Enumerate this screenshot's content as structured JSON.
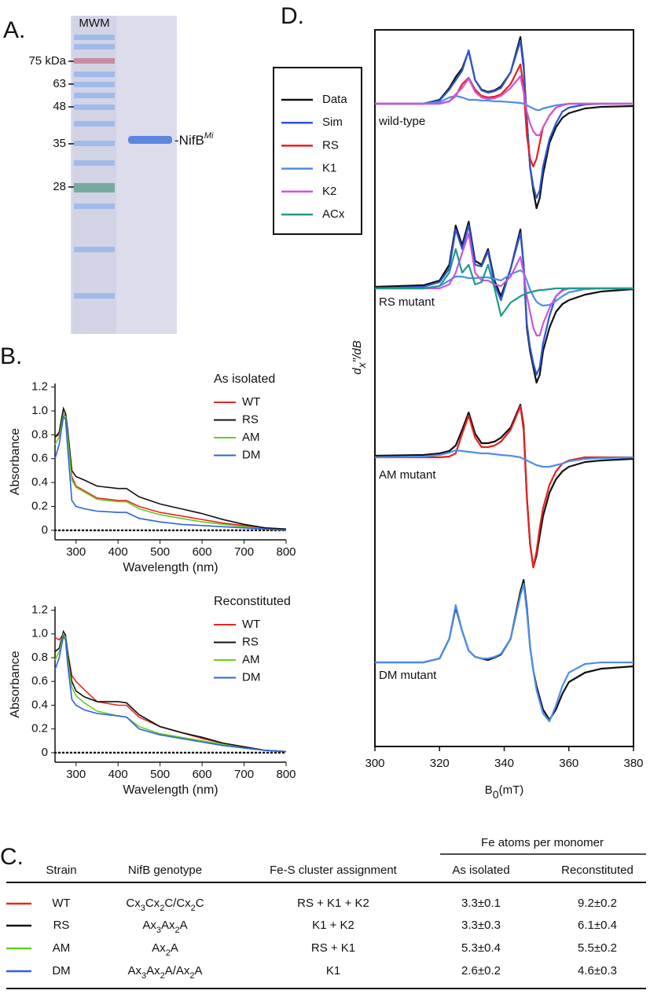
{
  "panel_labels": [
    "A.",
    "B.",
    "C.",
    "D."
  ],
  "gel": {
    "lane_label": "MWM",
    "markers": [
      "75 kDa",
      "63",
      "48",
      "35",
      "28"
    ],
    "band_label": {
      "text": "-NifB",
      "sup": "Mi"
    }
  },
  "chart_data": [
    {
      "type": "line",
      "legend_title": "As isolated",
      "xlabel": "Wavelength (nm)",
      "ylabel": "Absorbance",
      "x": [
        250,
        260,
        270,
        275,
        280,
        290,
        300,
        320,
        350,
        400,
        420,
        450,
        500,
        550,
        600,
        650,
        700,
        750,
        800
      ],
      "series": [
        {
          "name": "WT",
          "color": "#e8281e",
          "values": [
            0.78,
            0.8,
            0.98,
            0.95,
            0.8,
            0.45,
            0.37,
            0.33,
            0.27,
            0.25,
            0.25,
            0.2,
            0.15,
            0.12,
            0.09,
            0.06,
            0.04,
            0.02,
            0.01
          ]
        },
        {
          "name": "RS",
          "color": "#111111",
          "values": [
            0.78,
            0.82,
            1.02,
            0.98,
            0.85,
            0.5,
            0.45,
            0.42,
            0.37,
            0.35,
            0.35,
            0.28,
            0.22,
            0.18,
            0.14,
            0.09,
            0.05,
            0.02,
            0.01
          ]
        },
        {
          "name": "AM",
          "color": "#66cc22",
          "values": [
            0.72,
            0.78,
            0.97,
            0.95,
            0.8,
            0.42,
            0.36,
            0.32,
            0.26,
            0.24,
            0.24,
            0.18,
            0.13,
            0.1,
            0.07,
            0.05,
            0.03,
            0.01,
            0
          ]
        },
        {
          "name": "DM",
          "color": "#3060e0",
          "values": [
            0.6,
            0.72,
            0.95,
            0.93,
            0.7,
            0.25,
            0.2,
            0.18,
            0.16,
            0.15,
            0.15,
            0.1,
            0.07,
            0.05,
            0.04,
            0.03,
            0.02,
            0.01,
            0
          ]
        }
      ],
      "xlim": [
        250,
        800
      ],
      "ylim": [
        -0.08,
        1.23
      ],
      "xticks": [
        300,
        400,
        500,
        600,
        700,
        800
      ],
      "yticks": [
        0,
        0.2,
        0.4,
        0.6,
        0.8,
        {
          "value": 1,
          "label": "1.0"
        },
        1.2
      ]
    },
    {
      "type": "line",
      "legend_title": "Reconstituted",
      "xlabel": "Wavelength (nm)",
      "ylabel": "Absorbance",
      "x": [
        250,
        260,
        270,
        275,
        280,
        290,
        300,
        320,
        350,
        400,
        420,
        450,
        500,
        550,
        600,
        650,
        700,
        750,
        800
      ],
      "series": [
        {
          "name": "WT",
          "color": "#e8281e",
          "values": [
            0.97,
            0.95,
            1.0,
            0.97,
            0.85,
            0.65,
            0.6,
            0.53,
            0.43,
            0.4,
            0.4,
            0.3,
            0.22,
            0.17,
            0.12,
            0.08,
            0.05,
            0.02,
            0.01
          ]
        },
        {
          "name": "RS",
          "color": "#111111",
          "values": [
            0.85,
            0.88,
            1.02,
            0.99,
            0.85,
            0.6,
            0.52,
            0.47,
            0.43,
            0.43,
            0.42,
            0.32,
            0.22,
            0.17,
            0.13,
            0.08,
            0.05,
            0.02,
            0.01
          ]
        },
        {
          "name": "AM",
          "color": "#66cc22",
          "values": [
            0.78,
            0.85,
            1.0,
            0.97,
            0.8,
            0.55,
            0.48,
            0.42,
            0.35,
            0.31,
            0.3,
            0.22,
            0.16,
            0.13,
            0.1,
            0.07,
            0.04,
            0.02,
            0.01
          ]
        },
        {
          "name": "DM",
          "color": "#3060e0",
          "values": [
            0.7,
            0.8,
            0.98,
            0.95,
            0.75,
            0.45,
            0.4,
            0.36,
            0.33,
            0.31,
            0.3,
            0.2,
            0.15,
            0.12,
            0.09,
            0.06,
            0.04,
            0.02,
            0.01
          ]
        }
      ],
      "xlim": [
        250,
        800
      ],
      "ylim": [
        -0.08,
        1.23
      ],
      "xticks": [
        300,
        400,
        500,
        600,
        700,
        800
      ],
      "yticks": [
        0,
        0.2,
        0.4,
        0.6,
        0.8,
        {
          "value": 1,
          "label": "1.0"
        },
        1.2
      ]
    },
    {
      "type": "spectra",
      "ylabel": {
        "base": "d",
        "sub": "x",
        "rest": "′′/dB"
      },
      "xlabel": {
        "base": "B",
        "sub": "0",
        "rest": "(mT)"
      },
      "xlim": [
        300,
        380
      ],
      "xticks": [
        300,
        320,
        340,
        360,
        380
      ],
      "legend": [
        {
          "name": "Data",
          "color": "#111111"
        },
        {
          "name": "Sim",
          "color": "#2f55d4"
        },
        {
          "name": "RS",
          "color": "#e62020"
        },
        {
          "name": "K1",
          "color": "#4d8fe8"
        },
        {
          "name": "K2",
          "color": "#cc55dd"
        },
        {
          "name": "ACx",
          "color": "#22998a"
        }
      ],
      "x": [
        300,
        315,
        320,
        323,
        325,
        327,
        329,
        331,
        333,
        335,
        337,
        339,
        342,
        345,
        346,
        347,
        348,
        349,
        350,
        351,
        352,
        354,
        356,
        358,
        360,
        365,
        370,
        380
      ],
      "panels": [
        {
          "label": "wild-type",
          "series": [
            {
              "color": "#111111",
              "values": [
                0,
                0,
                0.5,
                2,
                3.4,
                4.5,
                6.7,
                3,
                1.8,
                1.5,
                1.7,
                2.2,
                4,
                8.5,
                5,
                -2,
                -8,
                -11,
                -13.3,
                -12,
                -9,
                -5,
                -3,
                -1.8,
                -1.2,
                -0.6,
                -0.4,
                -0.3
              ]
            },
            {
              "color": "#2f55d4",
              "values": [
                0,
                0,
                0.4,
                1.8,
                3,
                4.2,
                6.8,
                3,
                1.7,
                1.4,
                1.6,
                2,
                4,
                8,
                4.5,
                -2,
                -8,
                -10.5,
                -12,
                -11,
                -8,
                -4.5,
                -2.5,
                -1,
                -0.5,
                -0.1,
                0,
                0
              ]
            },
            {
              "color": "#e62020",
              "values": [
                0,
                0,
                0,
                0.3,
                1,
                2.5,
                3.3,
                1.8,
                1,
                0.8,
                0.9,
                1.2,
                2.5,
                5,
                2,
                -4,
                -7,
                -8,
                -7,
                -5,
                -3,
                -1.5,
                -0.5,
                -0.2,
                0,
                0,
                0,
                0
              ]
            },
            {
              "color": "#4d8fe8",
              "values": [
                0,
                0,
                0.2,
                0.8,
                1,
                0.8,
                0.5,
                0.5,
                0.4,
                0.4,
                0.3,
                0.3,
                0.2,
                0.1,
                0,
                -0.2,
                -0.4,
                -0.6,
                -0.8,
                -0.8,
                -0.6,
                -0.4,
                -0.2,
                -0.1,
                0,
                0,
                0,
                0
              ]
            },
            {
              "color": "#cc55dd",
              "values": [
                0,
                0,
                0,
                0.3,
                1.2,
                2,
                3.2,
                1.5,
                0.8,
                0.6,
                0.7,
                1,
                2,
                3.5,
                1.5,
                -1,
                -2.5,
                -3.5,
                -4,
                -4,
                -3,
                -1.5,
                -0.5,
                -0.2,
                0,
                0,
                0,
                0
              ]
            }
          ]
        },
        {
          "label": "RS mutant",
          "series": [
            {
              "color": "#111111",
              "values": [
                0.2,
                0.4,
                1,
                3,
                8,
                5.5,
                8.5,
                3.5,
                3,
                5,
                1,
                -1,
                2.5,
                7.5,
                3,
                -5,
                -8,
                -10,
                -12,
                -11,
                -8,
                -5,
                -3,
                -2,
                -1.5,
                -0.8,
                -0.4,
                -0.1
              ]
            },
            {
              "color": "#2f55d4",
              "values": [
                0,
                0.2,
                0.8,
                2.5,
                7.5,
                5,
                8,
                3,
                2.8,
                4.7,
                0.5,
                -1.5,
                2.5,
                7,
                3,
                -4.5,
                -7.5,
                -9.5,
                -11,
                -10,
                -7,
                -3.5,
                -1,
                -0.2,
                0,
                0,
                0,
                0
              ]
            },
            {
              "color": "#4d8fe8",
              "values": [
                0,
                0,
                0.3,
                1,
                1.5,
                1.5,
                1.3,
                1.3,
                1.4,
                1.4,
                1.2,
                1,
                1.8,
                2.3,
                2,
                1,
                -0.2,
                -1,
                -1.7,
                -2,
                -2.2,
                -2.1,
                -1.6,
                -1,
                -0.5,
                -0.1,
                0,
                0
              ]
            },
            {
              "color": "#cc55dd",
              "values": [
                0,
                0,
                0,
                0.5,
                2,
                4.5,
                7,
                2,
                1,
                1,
                0.5,
                0.3,
                1.5,
                4,
                2,
                -1,
                -3,
                -5,
                -6,
                -6,
                -4.5,
                -2.5,
                -1,
                -0.3,
                0,
                0,
                0,
                0
              ]
            },
            {
              "color": "#22998a",
              "values": [
                0,
                0,
                0.3,
                2,
                5,
                2,
                3,
                0.5,
                0.8,
                3,
                0,
                -3.5,
                -1.8,
                -1,
                -0.8,
                -0.6,
                -0.5,
                -0.4,
                -0.3,
                -0.2,
                -0.2,
                -0.1,
                0,
                0,
                0,
                0,
                0,
                0
              ]
            }
          ]
        },
        {
          "label": "AM mutant",
          "series": [
            {
              "color": "#111111",
              "values": [
                0.2,
                0.3,
                0.5,
                0.8,
                1.5,
                3.5,
                5.7,
                3,
                1.8,
                1.8,
                2,
                2.5,
                3.8,
                6.7,
                4,
                -5,
                -11,
                -14,
                -12.5,
                -10,
                -7.5,
                -4.5,
                -2.8,
                -1.8,
                -1.2,
                -0.6,
                -0.4,
                -0.2
              ]
            },
            {
              "color": "#e62020",
              "values": [
                0,
                0,
                0,
                0.1,
                0.5,
                3,
                5.3,
                2.5,
                1.3,
                1.3,
                1.5,
                2,
                3.5,
                6.5,
                3.5,
                -5,
                -11,
                -14,
                -12,
                -9,
                -6.5,
                -3.5,
                -1.8,
                -0.8,
                -0.4,
                0,
                0,
                0
              ]
            },
            {
              "color": "#4d8fe8",
              "values": [
                0,
                0.1,
                0.3,
                0.6,
                0.9,
                0.8,
                0.7,
                0.6,
                0.5,
                0.5,
                0.4,
                0.3,
                0.2,
                0,
                -0.2,
                -0.4,
                -0.6,
                -0.8,
                -1,
                -1.1,
                -1.2,
                -1.2,
                -1,
                -0.8,
                -0.5,
                -0.2,
                -0.1,
                0
              ]
            }
          ]
        },
        {
          "label": "DM mutant",
          "series": [
            {
              "color": "#111111",
              "values": [
                0,
                0,
                0.5,
                3,
                7,
                4,
                1.5,
                0.7,
                0.5,
                0.3,
                0.6,
                1,
                3,
                9,
                10.5,
                7,
                2,
                -1,
                -3,
                -4.5,
                -6,
                -7.3,
                -6,
                -4,
                -2.5,
                -1.3,
                -0.8,
                -0.5
              ]
            },
            {
              "color": "#4d8fe8",
              "values": [
                0,
                0,
                0.5,
                3,
                7.3,
                4,
                1.5,
                0.7,
                0.5,
                0.5,
                0.7,
                1.1,
                3,
                8.5,
                10,
                6.5,
                2,
                -1,
                -3.5,
                -5,
                -6.5,
                -7.5,
                -5.5,
                -3,
                -1.3,
                -0.2,
                0,
                0
              ]
            }
          ]
        }
      ]
    }
  ],
  "table": {
    "group_header": "Fe atoms per monomer",
    "columns": [
      "Strain",
      "NifB genotype",
      "Fe-S cluster assignment",
      "As isolated",
      "Reconstituted"
    ],
    "row_colors": [
      "#e8281e",
      "#111111",
      "#66cc22",
      "#3060e0"
    ],
    "rows": [
      [
        "WT",
        "Cx3Cx2C/Cx2C",
        "RS + K1 + K2",
        "3.3±0.1",
        "9.2±0.2"
      ],
      [
        "RS",
        "Ax3Ax2A",
        "K1 + K2",
        "3.3±0.3",
        "6.1±0.4"
      ],
      [
        "AM",
        "Ax2A",
        "RS + K1",
        "5.3±0.4",
        "5.5±0.2"
      ],
      [
        "DM",
        "Ax3Ax2A/Ax2A",
        "K1",
        "2.6±0.2",
        "4.6±0.3"
      ]
    ]
  }
}
